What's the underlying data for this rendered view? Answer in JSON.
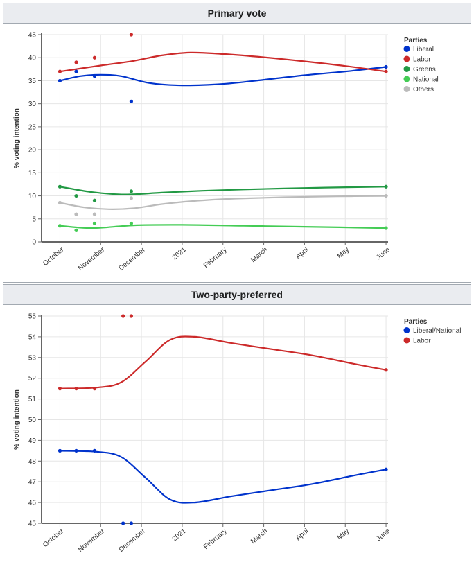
{
  "months": [
    "October",
    "November",
    "December",
    "2021",
    "February",
    "March",
    "April",
    "May",
    "June"
  ],
  "chart_data": [
    {
      "type": "line",
      "title": "Primary vote",
      "ylabel": "% voting intention",
      "xlabel": "",
      "ylim": [
        0,
        45
      ],
      "yticks": [
        0,
        5,
        10,
        15,
        20,
        25,
        30,
        35,
        40,
        45
      ],
      "legend_title": "Parties",
      "legend_position": "top-right",
      "series": [
        {
          "name": "Liberal",
          "color": "#0033cc",
          "trend": [
            [
              0,
              35
            ],
            [
              0.5,
              36
            ],
            [
              1,
              36.3
            ],
            [
              1.5,
              36
            ],
            [
              2.2,
              34.5
            ],
            [
              3,
              34
            ],
            [
              4,
              34.3
            ],
            [
              5,
              35.2
            ],
            [
              6,
              36.2
            ],
            [
              7,
              37
            ],
            [
              8,
              38
            ]
          ],
          "points": [
            [
              0,
              35
            ],
            [
              0.4,
              37
            ],
            [
              0.85,
              36
            ],
            [
              1.75,
              30.5
            ],
            [
              8,
              38
            ]
          ]
        },
        {
          "name": "Labor",
          "color": "#cc2a2a",
          "trend": [
            [
              0,
              37
            ],
            [
              1,
              38.3
            ],
            [
              1.8,
              39.3
            ],
            [
              2.5,
              40.5
            ],
            [
              3.2,
              41.1
            ],
            [
              4,
              40.8
            ],
            [
              5,
              40.1
            ],
            [
              6,
              39.2
            ],
            [
              7,
              38.2
            ],
            [
              8,
              37
            ]
          ],
          "points": [
            [
              0,
              37
            ],
            [
              0.4,
              39
            ],
            [
              0.85,
              40
            ],
            [
              1.75,
              45
            ],
            [
              8,
              37
            ]
          ]
        },
        {
          "name": "Greens",
          "color": "#229944",
          "trend": [
            [
              0,
              12
            ],
            [
              0.8,
              10.8
            ],
            [
              1.6,
              10.3
            ],
            [
              2.5,
              10.7
            ],
            [
              3.5,
              11.1
            ],
            [
              4.5,
              11.4
            ],
            [
              5.5,
              11.6
            ],
            [
              6.5,
              11.8
            ],
            [
              8,
              12
            ]
          ],
          "points": [
            [
              0,
              12
            ],
            [
              0.4,
              10
            ],
            [
              0.85,
              9
            ],
            [
              1.75,
              11
            ],
            [
              8,
              12
            ]
          ]
        },
        {
          "name": "National",
          "color": "#44cc55",
          "trend": [
            [
              0,
              3.5
            ],
            [
              0.8,
              3
            ],
            [
              1.8,
              3.6
            ],
            [
              3,
              3.7
            ],
            [
              4.5,
              3.5
            ],
            [
              6,
              3.3
            ],
            [
              8,
              3
            ]
          ],
          "points": [
            [
              0,
              3.5
            ],
            [
              0.4,
              2.5
            ],
            [
              0.85,
              4
            ],
            [
              1.75,
              4
            ],
            [
              8,
              3
            ]
          ]
        },
        {
          "name": "Others",
          "color": "#bbbbbb",
          "trend": [
            [
              0,
              8.5
            ],
            [
              0.6,
              7.5
            ],
            [
              1.2,
              7.1
            ],
            [
              1.8,
              7.3
            ],
            [
              2.5,
              8.2
            ],
            [
              3.3,
              8.9
            ],
            [
              4.3,
              9.4
            ],
            [
              5.5,
              9.7
            ],
            [
              6.8,
              9.9
            ],
            [
              8,
              10
            ]
          ],
          "points": [
            [
              0,
              8.5
            ],
            [
              0.4,
              6
            ],
            [
              0.85,
              6
            ],
            [
              1.75,
              9.5
            ],
            [
              8,
              10
            ]
          ]
        }
      ]
    },
    {
      "type": "line",
      "title": "Two-party-preferred",
      "ylabel": "% voting intention",
      "xlabel": "",
      "ylim": [
        45,
        55
      ],
      "yticks": [
        45,
        46,
        47,
        48,
        49,
        50,
        51,
        52,
        53,
        54,
        55
      ],
      "legend_title": "Parties",
      "legend_position": "top-right",
      "series": [
        {
          "name": "Liberal/National",
          "color": "#0033cc",
          "trend": [
            [
              0,
              48.5
            ],
            [
              0.9,
              48.45
            ],
            [
              1.5,
              48.2
            ],
            [
              2.1,
              47.2
            ],
            [
              2.7,
              46.15
            ],
            [
              3.3,
              46
            ],
            [
              4.2,
              46.3
            ],
            [
              5.2,
              46.6
            ],
            [
              6.2,
              46.9
            ],
            [
              7.2,
              47.3
            ],
            [
              8,
              47.6
            ]
          ],
          "points": [
            [
              0,
              48.5
            ],
            [
              0.4,
              48.5
            ],
            [
              0.85,
              48.5
            ],
            [
              1.55,
              45
            ],
            [
              1.75,
              45
            ],
            [
              8,
              47.6
            ]
          ]
        },
        {
          "name": "Labor",
          "color": "#cc2a2a",
          "trend": [
            [
              0,
              51.5
            ],
            [
              0.9,
              51.55
            ],
            [
              1.5,
              51.8
            ],
            [
              2.1,
              52.8
            ],
            [
              2.7,
              53.85
            ],
            [
              3.3,
              54
            ],
            [
              4.2,
              53.7
            ],
            [
              5.2,
              53.4
            ],
            [
              6.2,
              53.1
            ],
            [
              7.2,
              52.7
            ],
            [
              8,
              52.4
            ]
          ],
          "points": [
            [
              0,
              51.5
            ],
            [
              0.4,
              51.5
            ],
            [
              0.85,
              51.5
            ],
            [
              1.55,
              55
            ],
            [
              1.75,
              55
            ],
            [
              8,
              52.4
            ]
          ]
        }
      ]
    }
  ]
}
